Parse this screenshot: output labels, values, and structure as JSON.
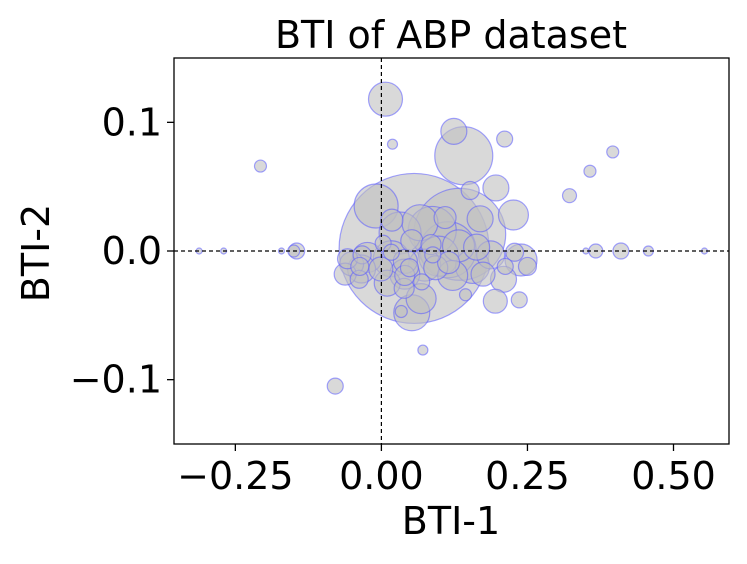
{
  "chart_data": {
    "type": "scatter",
    "title": "BTI of ABP dataset",
    "xlabel": "BTI-1",
    "ylabel": "BTI-2",
    "xlim": [
      -0.355,
      0.595
    ],
    "ylim": [
      -0.15,
      0.15
    ],
    "x_ticks": [
      -0.25,
      0.0,
      0.25,
      0.5
    ],
    "x_tick_labels": [
      "−0.25",
      "0.00",
      "0.25",
      "0.50"
    ],
    "y_ticks": [
      -0.1,
      0.0,
      0.1
    ],
    "y_tick_labels": [
      "−0.1",
      "0.0",
      "0.1"
    ],
    "reference_lines": {
      "x": 0,
      "y": 0,
      "style": "dashed",
      "color": "#000000"
    },
    "grid": false,
    "legend": "none",
    "marker": {
      "face_color": "#c0c0c0",
      "edge_color": "#5a5aff",
      "alpha": 0.6
    },
    "note": "bubble size encodes a third quantity (not labeled in figure)",
    "points": [
      {
        "x": 0.007,
        "y": 0.118,
        "s": 17
      },
      {
        "x": 0.019,
        "y": 0.083,
        "s": 5
      },
      {
        "x": 0.124,
        "y": 0.093,
        "s": 13
      },
      {
        "x": 0.141,
        "y": 0.074,
        "s": 29
      },
      {
        "x": 0.211,
        "y": 0.087,
        "s": 8
      },
      {
        "x": 0.396,
        "y": 0.077,
        "s": 6
      },
      {
        "x": 0.357,
        "y": 0.062,
        "s": 6
      },
      {
        "x": 0.322,
        "y": 0.043,
        "s": 7
      },
      {
        "x": -0.207,
        "y": 0.066,
        "s": 6
      },
      {
        "x": 0.196,
        "y": 0.049,
        "s": 13
      },
      {
        "x": 0.152,
        "y": 0.047,
        "s": 9
      },
      {
        "x": -0.009,
        "y": 0.035,
        "s": 22
      },
      {
        "x": 0.056,
        "y": 0.002,
        "s": 75
      },
      {
        "x": 0.134,
        "y": 0.013,
        "s": 46
      },
      {
        "x": 0.114,
        "y": 0.001,
        "s": 28
      },
      {
        "x": 0.087,
        "y": 0.016,
        "s": 24
      },
      {
        "x": 0.032,
        "y": 0.014,
        "s": 21
      },
      {
        "x": 0.066,
        "y": 0.022,
        "s": 18
      },
      {
        "x": 0.226,
        "y": 0.028,
        "s": 15
      },
      {
        "x": 0.169,
        "y": 0.025,
        "s": 13
      },
      {
        "x": 0.017,
        "y": -0.006,
        "s": 18
      },
      {
        "x": 0.098,
        "y": -0.004,
        "s": 20
      },
      {
        "x": 0.156,
        "y": -0.012,
        "s": 17
      },
      {
        "x": 0.04,
        "y": -0.018,
        "s": 15
      },
      {
        "x": 0.074,
        "y": -0.011,
        "s": 16
      },
      {
        "x": 0.187,
        "y": -0.003,
        "s": 14
      },
      {
        "x": -0.024,
        "y": -0.005,
        "s": 15
      },
      {
        "x": 0.239,
        "y": -0.007,
        "s": 16
      },
      {
        "x": 0.122,
        "y": -0.019,
        "s": 15
      },
      {
        "x": 0.209,
        "y": -0.022,
        "s": 13
      },
      {
        "x": -0.034,
        "y": -0.014,
        "s": 14
      },
      {
        "x": 0.01,
        "y": -0.025,
        "s": 13
      },
      {
        "x": 0.068,
        "y": -0.037,
        "s": 15
      },
      {
        "x": 0.039,
        "y": -0.029,
        "s": 10
      },
      {
        "x": 0.041,
        "y": -0.008,
        "s": 12
      },
      {
        "x": 0.132,
        "y": 0.004,
        "s": 16
      },
      {
        "x": 0.093,
        "y": -0.013,
        "s": 12
      },
      {
        "x": -0.001,
        "y": -0.014,
        "s": 12
      },
      {
        "x": 0.163,
        "y": 0.003,
        "s": 13
      },
      {
        "x": 0.052,
        "y": 0.008,
        "s": 11
      },
      {
        "x": 0.174,
        "y": -0.018,
        "s": 12
      },
      {
        "x": 0.115,
        "y": -0.009,
        "s": 11
      },
      {
        "x": 0.018,
        "y": 0.024,
        "s": 11
      },
      {
        "x": 0.109,
        "y": 0.026,
        "s": 11
      },
      {
        "x": 0.04,
        "y": -0.019,
        "s": 10
      },
      {
        "x": 0.085,
        "y": 0.005,
        "s": 10
      },
      {
        "x": 0.052,
        "y": -0.048,
        "s": 18
      },
      {
        "x": 0.195,
        "y": -0.039,
        "s": 12
      },
      {
        "x": 0.236,
        "y": -0.038,
        "s": 8
      },
      {
        "x": 0.034,
        "y": -0.047,
        "s": 6
      },
      {
        "x": 0.071,
        "y": -0.077,
        "s": 5
      },
      {
        "x": -0.079,
        "y": -0.105,
        "s": 8
      },
      {
        "x": 0.144,
        "y": -0.034,
        "s": 6
      },
      {
        "x": -0.062,
        "y": -0.018,
        "s": 11
      },
      {
        "x": -0.051,
        "y": -0.01,
        "s": 12
      },
      {
        "x": -0.038,
        "y": -0.022,
        "s": 9
      },
      {
        "x": -0.033,
        "y": -0.003,
        "s": 9
      },
      {
        "x": -0.058,
        "y": -0.006,
        "s": 10
      },
      {
        "x": -0.037,
        "y": -0.012,
        "s": 9
      },
      {
        "x": 0.003,
        "y": 0.006,
        "s": 8
      },
      {
        "x": 0.25,
        "y": -0.012,
        "s": 9
      },
      {
        "x": 0.212,
        "y": -0.012,
        "s": 8
      },
      {
        "x": 0.228,
        "y": -0.001,
        "s": 9
      },
      {
        "x": 0.017,
        "y": -0.001,
        "s": 8
      },
      {
        "x": 0.048,
        "y": -0.013,
        "s": 9
      },
      {
        "x": 0.088,
        "y": -0.003,
        "s": 8
      },
      {
        "x": 0.069,
        "y": -0.024,
        "s": 8
      },
      {
        "x": -0.145,
        "y": 0.0,
        "s": 8
      },
      {
        "x": -0.15,
        "y": 0.0,
        "s": 6
      },
      {
        "x": -0.27,
        "y": 0.0,
        "s": 3
      },
      {
        "x": -0.312,
        "y": 0.0,
        "s": 3
      },
      {
        "x": -0.171,
        "y": 0.0,
        "s": 3
      },
      {
        "x": 0.367,
        "y": 0.0,
        "s": 7
      },
      {
        "x": 0.41,
        "y": 0.0,
        "s": 8
      },
      {
        "x": 0.457,
        "y": 0.0,
        "s": 5
      },
      {
        "x": 0.35,
        "y": 0.0,
        "s": 3
      },
      {
        "x": 0.553,
        "y": 0.0,
        "s": 3
      }
    ]
  }
}
